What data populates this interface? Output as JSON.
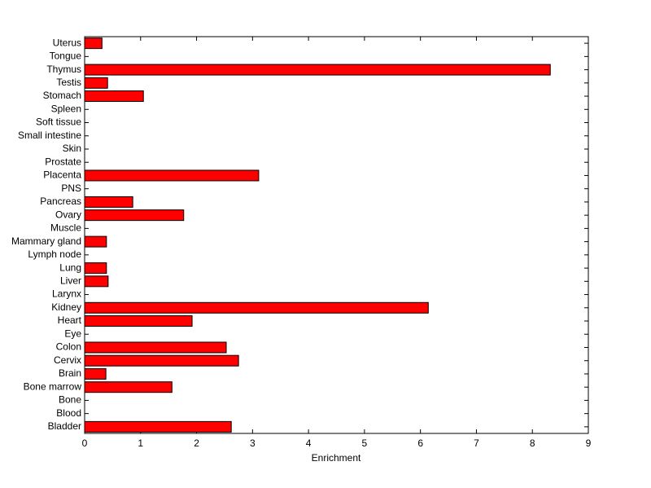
{
  "chart_data": {
    "type": "hbar",
    "xlabel": "Enrichment",
    "categories": [
      "Bladder",
      "Blood",
      "Bone",
      "Bone marrow",
      "Brain",
      "Cervix",
      "Colon",
      "Eye",
      "Heart",
      "Kidney",
      "Larynx",
      "Liver",
      "Lung",
      "Lymph node",
      "Mammary gland",
      "Muscle",
      "Ovary",
      "Pancreas",
      "PNS",
      "Placenta",
      "Prostate",
      "Skin",
      "Small intestine",
      "Soft tissue",
      "Spleen",
      "Stomach",
      "Testis",
      "Thymus",
      "Tongue",
      "Uterus"
    ],
    "values": [
      2.62,
      0,
      0,
      1.56,
      0.38,
      2.75,
      2.53,
      0,
      1.92,
      6.14,
      0,
      0.42,
      0.39,
      0,
      0.39,
      0,
      1.77,
      0.86,
      0,
      3.11,
      0,
      0,
      0,
      0,
      0,
      1.05,
      0.41,
      8.32,
      0,
      0.31
    ],
    "color": "#ff0000",
    "xlim": [
      0,
      9
    ],
    "xticks": [
      0,
      1,
      2,
      3,
      4,
      5,
      6,
      7,
      8,
      9
    ]
  }
}
